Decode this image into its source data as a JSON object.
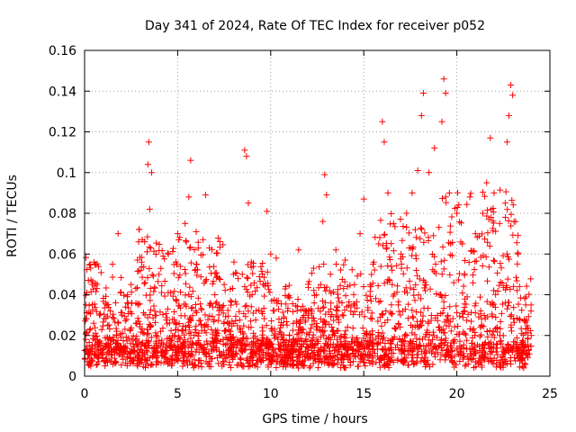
{
  "chart_data": {
    "type": "scatter",
    "title": "Day 341 of 2024, Rate Of TEC Index for receiver p052",
    "xlabel": "GPS time / hours",
    "ylabel": "ROTI / TECUs",
    "xlim": [
      0,
      25
    ],
    "ylim": [
      0,
      0.16
    ],
    "grid": true,
    "marker": "+",
    "marker_color": "#ff0000",
    "x_ticks": [
      "0",
      "5",
      "10",
      "15",
      "20",
      "25"
    ],
    "y_ticks": [
      "0",
      "0.02",
      "0.04",
      "0.06",
      "0.08",
      "0.1",
      "0.12",
      "0.14",
      "0.16"
    ],
    "series": [
      {
        "name": "p052 ROTI",
        "points": [
          [
            0.1,
            0.012
          ],
          [
            0.3,
            0.055
          ],
          [
            0.4,
            0.045
          ],
          [
            0.5,
            0.056
          ],
          [
            0.8,
            0.03
          ],
          [
            1.2,
            0.035
          ],
          [
            1.5,
            0.055
          ],
          [
            1.8,
            0.07
          ],
          [
            2.0,
            0.03
          ],
          [
            2.5,
            0.045
          ],
          [
            2.9,
            0.066
          ],
          [
            3.1,
            0.067
          ],
          [
            3.4,
            0.104
          ],
          [
            3.45,
            0.115
          ],
          [
            3.5,
            0.082
          ],
          [
            3.6,
            0.1
          ],
          [
            4.0,
            0.05
          ],
          [
            4.5,
            0.06
          ],
          [
            5.0,
            0.07
          ],
          [
            5.4,
            0.075
          ],
          [
            5.6,
            0.088
          ],
          [
            5.7,
            0.106
          ],
          [
            6.0,
            0.055
          ],
          [
            6.5,
            0.089
          ],
          [
            7.0,
            0.04
          ],
          [
            7.5,
            0.045
          ],
          [
            8.0,
            0.05
          ],
          [
            8.6,
            0.111
          ],
          [
            8.7,
            0.108
          ],
          [
            8.8,
            0.085
          ],
          [
            9.0,
            0.04
          ],
          [
            9.6,
            0.045
          ],
          [
            9.8,
            0.081
          ],
          [
            10.0,
            0.06
          ],
          [
            10.3,
            0.058
          ],
          [
            10.8,
            0.044
          ],
          [
            11.0,
            0.02
          ],
          [
            11.5,
            0.062
          ],
          [
            12.0,
            0.03
          ],
          [
            12.3,
            0.053
          ],
          [
            12.8,
            0.076
          ],
          [
            12.9,
            0.099
          ],
          [
            13.0,
            0.089
          ],
          [
            13.5,
            0.062
          ],
          [
            14.0,
            0.057
          ],
          [
            14.5,
            0.045
          ],
          [
            14.8,
            0.07
          ],
          [
            15.0,
            0.087
          ],
          [
            15.5,
            0.055
          ],
          [
            15.8,
            0.065
          ],
          [
            16.0,
            0.125
          ],
          [
            16.1,
            0.115
          ],
          [
            16.3,
            0.09
          ],
          [
            16.6,
            0.075
          ],
          [
            17.0,
            0.06
          ],
          [
            17.3,
            0.08
          ],
          [
            17.6,
            0.09
          ],
          [
            17.9,
            0.101
          ],
          [
            18.1,
            0.128
          ],
          [
            18.2,
            0.139
          ],
          [
            18.5,
            0.1
          ],
          [
            18.8,
            0.112
          ],
          [
            19.2,
            0.125
          ],
          [
            19.3,
            0.146
          ],
          [
            19.4,
            0.139
          ],
          [
            19.6,
            0.09
          ],
          [
            20.0,
            0.08
          ],
          [
            20.3,
            0.065
          ],
          [
            20.7,
            0.088
          ],
          [
            21.0,
            0.07
          ],
          [
            21.4,
            0.08
          ],
          [
            21.6,
            0.095
          ],
          [
            21.8,
            0.117
          ],
          [
            22.0,
            0.09
          ],
          [
            22.3,
            0.075
          ],
          [
            22.6,
            0.085
          ],
          [
            22.7,
            0.115
          ],
          [
            22.8,
            0.128
          ],
          [
            22.9,
            0.143
          ],
          [
            23.0,
            0.138
          ],
          [
            23.3,
            0.06
          ],
          [
            23.7,
            0.035
          ],
          [
            24.0,
            0.02
          ]
        ]
      }
    ]
  }
}
